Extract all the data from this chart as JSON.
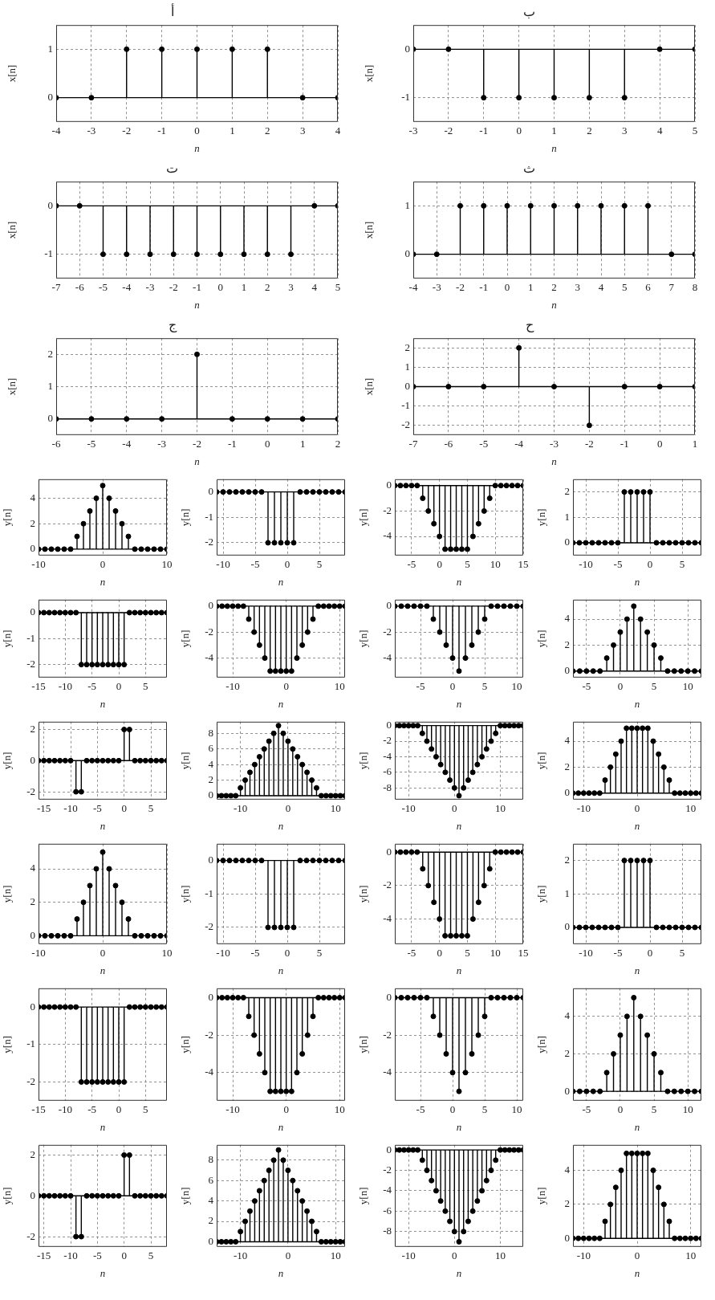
{
  "chart_data": [
    {
      "type": "lollipop",
      "title": "أ",
      "xlabel": "n",
      "ylabel": "x[n]",
      "color": "#000000",
      "marker": "circle",
      "grid": true,
      "xlim": [
        -4,
        4
      ],
      "xticks": [
        -4,
        -3,
        -2,
        -1,
        0,
        1,
        2,
        3,
        4
      ],
      "ylim": [
        -0.5,
        1.5
      ],
      "yticks": [
        0,
        1
      ],
      "x": [
        -4,
        -3,
        -2,
        -1,
        0,
        1,
        2,
        3,
        4
      ],
      "values": [
        0,
        0,
        1,
        1,
        1,
        1,
        1,
        0,
        0
      ]
    },
    {
      "type": "lollipop",
      "title": "ب",
      "xlabel": "n",
      "ylabel": "x[n]",
      "color": "#000000",
      "marker": "circle",
      "grid": true,
      "xlim": [
        -3,
        5
      ],
      "xticks": [
        -3,
        -2,
        -1,
        0,
        1,
        2,
        3,
        4,
        5
      ],
      "ylim": [
        -1.5,
        0.5
      ],
      "yticks": [
        -1,
        0
      ],
      "x": [
        -3,
        -2,
        -1,
        0,
        1,
        2,
        3,
        4,
        5
      ],
      "values": [
        0,
        0,
        -1,
        -1,
        -1,
        -1,
        -1,
        0,
        0
      ]
    },
    {
      "type": "lollipop",
      "title": "ت",
      "xlabel": "n",
      "ylabel": "x[n]",
      "color": "#000000",
      "marker": "circle",
      "grid": true,
      "xlim": [
        -7,
        5
      ],
      "xticks": [
        -7,
        -6,
        -5,
        -4,
        -3,
        -2,
        -1,
        0,
        1,
        2,
        3,
        4,
        5
      ],
      "ylim": [
        -1.5,
        0.5
      ],
      "yticks": [
        -1,
        0
      ],
      "x": [
        -7,
        -6,
        -5,
        -4,
        -3,
        -2,
        -1,
        0,
        1,
        2,
        3,
        4,
        5
      ],
      "values": [
        0,
        0,
        -1,
        -1,
        -1,
        -1,
        -1,
        -1,
        -1,
        -1,
        -1,
        0,
        0
      ]
    },
    {
      "type": "lollipop",
      "title": "ث",
      "xlabel": "n",
      "ylabel": "x[n]",
      "color": "#000000",
      "marker": "circle",
      "grid": true,
      "xlim": [
        -4,
        8
      ],
      "xticks": [
        -4,
        -3,
        -2,
        -1,
        0,
        1,
        2,
        3,
        4,
        5,
        6,
        7,
        8
      ],
      "ylim": [
        -0.5,
        1.5
      ],
      "yticks": [
        0,
        1
      ],
      "x": [
        -4,
        -3,
        -2,
        -1,
        0,
        1,
        2,
        3,
        4,
        5,
        6,
        7,
        8
      ],
      "values": [
        0,
        0,
        1,
        1,
        1,
        1,
        1,
        1,
        1,
        1,
        1,
        0,
        0
      ]
    },
    {
      "type": "lollipop",
      "title": "ج",
      "xlabel": "n",
      "ylabel": "x[n]",
      "color": "#000000",
      "marker": "circle",
      "grid": true,
      "xlim": [
        -6,
        2
      ],
      "xticks": [
        -6,
        -5,
        -4,
        -3,
        -2,
        -1,
        0,
        1,
        2
      ],
      "ylim": [
        -0.5,
        2.5
      ],
      "yticks": [
        0,
        1,
        2
      ],
      "x": [
        -6,
        -5,
        -4,
        -3,
        -2,
        -1,
        0,
        1,
        2
      ],
      "values": [
        0,
        0,
        0,
        0,
        2,
        0,
        0,
        0,
        0
      ]
    },
    {
      "type": "lollipop",
      "title": "ح",
      "xlabel": "n",
      "ylabel": "x[n]",
      "color": "#000000",
      "marker": "circle",
      "grid": true,
      "xlim": [
        -7,
        1
      ],
      "xticks": [
        -7,
        -6,
        -5,
        -4,
        -3,
        -2,
        -1,
        0,
        1
      ],
      "ylim": [
        -2.5,
        2.5
      ],
      "yticks": [
        -2,
        -1,
        0,
        1,
        2
      ],
      "x": [
        -7,
        -6,
        -5,
        -4,
        -3,
        -2,
        -1,
        0,
        1
      ],
      "values": [
        0,
        0,
        0,
        2,
        0,
        -2,
        0,
        0,
        0
      ]
    },
    {
      "type": "lollipop",
      "xlabel": "n",
      "ylabel": "y[n]",
      "color": "#000000",
      "marker": "circle",
      "grid": true,
      "xlim": [
        -10,
        10
      ],
      "xticks": [
        -10,
        0,
        10
      ],
      "ylim": [
        -0.5,
        5.5
      ],
      "yticks": [
        0,
        2,
        4
      ],
      "x": [
        -10,
        -9,
        -8,
        -7,
        -6,
        -5,
        -4,
        -3,
        -2,
        -1,
        0,
        1,
        2,
        3,
        4,
        5,
        6,
        7,
        8,
        9,
        10
      ],
      "values": [
        0,
        0,
        0,
        0,
        0,
        0,
        1,
        2,
        3,
        4,
        5,
        4,
        3,
        2,
        1,
        0,
        0,
        0,
        0,
        0,
        0
      ]
    },
    {
      "type": "lollipop",
      "xlabel": "n",
      "ylabel": "y[n]",
      "color": "#000000",
      "marker": "circle",
      "grid": true,
      "xlim": [
        -11,
        9
      ],
      "xticks": [
        -10,
        -5,
        0,
        5
      ],
      "ylim": [
        -2.5,
        0.5
      ],
      "yticks": [
        -2,
        -1,
        0
      ],
      "x": [
        -11,
        -10,
        -9,
        -8,
        -7,
        -6,
        -5,
        -4,
        -3,
        -2,
        -1,
        0,
        1,
        2,
        3,
        4,
        5,
        6,
        7,
        8,
        9
      ],
      "values": [
        0,
        0,
        0,
        0,
        0,
        0,
        0,
        0,
        -2,
        -2,
        -2,
        -2,
        -2,
        0,
        0,
        0,
        0,
        0,
        0,
        0,
        0
      ]
    },
    {
      "type": "lollipop",
      "xlabel": "n",
      "ylabel": "y[n]",
      "color": "#000000",
      "marker": "circle",
      "grid": true,
      "xlim": [
        -8,
        15
      ],
      "xticks": [
        -5,
        0,
        5,
        10,
        15
      ],
      "ylim": [
        -5.5,
        0.5
      ],
      "yticks": [
        -4,
        -2,
        0
      ],
      "x": [
        -8,
        -7,
        -6,
        -5,
        -4,
        -3,
        -2,
        -1,
        0,
        1,
        2,
        3,
        4,
        5,
        6,
        7,
        8,
        9,
        10,
        11,
        12,
        13,
        14,
        15
      ],
      "values": [
        0,
        0,
        0,
        0,
        0,
        -1,
        -2,
        -3,
        -4,
        -5,
        -5,
        -5,
        -5,
        -5,
        -4,
        -3,
        -2,
        -1,
        0,
        0,
        0,
        0,
        0,
        0
      ]
    },
    {
      "type": "lollipop",
      "xlabel": "n",
      "ylabel": "y[n]",
      "color": "#000000",
      "marker": "circle",
      "grid": true,
      "xlim": [
        -12,
        8
      ],
      "xticks": [
        -10,
        -5,
        0,
        5
      ],
      "ylim": [
        -0.5,
        2.5
      ],
      "yticks": [
        0,
        1,
        2
      ],
      "x": [
        -12,
        -11,
        -10,
        -9,
        -8,
        -7,
        -6,
        -5,
        -4,
        -3,
        -2,
        -1,
        0,
        1,
        2,
        3,
        4,
        5,
        6,
        7,
        8
      ],
      "values": [
        0,
        0,
        0,
        0,
        0,
        0,
        0,
        0,
        2,
        2,
        2,
        2,
        2,
        0,
        0,
        0,
        0,
        0,
        0,
        0,
        0
      ]
    },
    {
      "type": "lollipop",
      "xlabel": "n",
      "ylabel": "y[n]",
      "color": "#000000",
      "marker": "circle",
      "grid": true,
      "xlim": [
        -15,
        9
      ],
      "xticks": [
        -15,
        -10,
        -5,
        0,
        5
      ],
      "ylim": [
        -2.5,
        0.5
      ],
      "yticks": [
        -2,
        -1,
        0
      ],
      "x": [
        -15,
        -14,
        -13,
        -12,
        -11,
        -10,
        -9,
        -8,
        -7,
        -6,
        -5,
        -4,
        -3,
        -2,
        -1,
        0,
        1,
        2,
        3,
        4,
        5,
        6,
        7,
        8,
        9
      ],
      "values": [
        0,
        0,
        0,
        0,
        0,
        0,
        0,
        0,
        -2,
        -2,
        -2,
        -2,
        -2,
        -2,
        -2,
        -2,
        -2,
        0,
        0,
        0,
        0,
        0,
        0,
        0,
        0
      ]
    },
    {
      "type": "lollipop",
      "xlabel": "n",
      "ylabel": "y[n]",
      "color": "#000000",
      "marker": "circle",
      "grid": true,
      "xlim": [
        -13,
        11
      ],
      "xticks": [
        -10,
        0,
        10
      ],
      "ylim": [
        -5.5,
        0.5
      ],
      "yticks": [
        -4,
        -2,
        0
      ],
      "x": [
        -13,
        -12,
        -11,
        -10,
        -9,
        -8,
        -7,
        -6,
        -5,
        -4,
        -3,
        -2,
        -1,
        0,
        1,
        2,
        3,
        4,
        5,
        6,
        7,
        8,
        9,
        10,
        11
      ],
      "values": [
        0,
        0,
        0,
        0,
        0,
        0,
        -1,
        -2,
        -3,
        -4,
        -5,
        -5,
        -5,
        -5,
        -5,
        -4,
        -3,
        -2,
        -1,
        0,
        0,
        0,
        0,
        0,
        0
      ]
    },
    {
      "type": "lollipop",
      "xlabel": "n",
      "ylabel": "y[n]",
      "color": "#000000",
      "marker": "circle",
      "grid": true,
      "xlim": [
        -9,
        11
      ],
      "xticks": [
        -5,
        0,
        5,
        10
      ],
      "ylim": [
        -5.5,
        0.5
      ],
      "yticks": [
        -4,
        -2,
        0
      ],
      "x": [
        -9,
        -8,
        -7,
        -6,
        -5,
        -4,
        -3,
        -2,
        -1,
        0,
        1,
        2,
        3,
        4,
        5,
        6,
        7,
        8,
        9,
        10,
        11
      ],
      "values": [
        0,
        0,
        0,
        0,
        0,
        0,
        -1,
        -2,
        -3,
        -4,
        -5,
        -4,
        -3,
        -2,
        -1,
        0,
        0,
        0,
        0,
        0,
        0
      ]
    },
    {
      "type": "lollipop",
      "xlabel": "n",
      "ylabel": "y[n]",
      "color": "#000000",
      "marker": "circle",
      "grid": true,
      "xlim": [
        -7,
        12
      ],
      "xticks": [
        -5,
        0,
        5,
        10
      ],
      "ylim": [
        -0.5,
        5.5
      ],
      "yticks": [
        0,
        2,
        4
      ],
      "x": [
        -7,
        -6,
        -5,
        -4,
        -3,
        -2,
        -1,
        0,
        1,
        2,
        3,
        4,
        5,
        6,
        7,
        8,
        9,
        10,
        11,
        12
      ],
      "values": [
        0,
        0,
        0,
        0,
        0,
        1,
        2,
        3,
        4,
        5,
        4,
        3,
        2,
        1,
        0,
        0,
        0,
        0,
        0,
        0
      ]
    },
    {
      "type": "lollipop",
      "xlabel": "n",
      "ylabel": "y[n]",
      "color": "#000000",
      "marker": "circle",
      "grid": true,
      "xlim": [
        -16,
        8
      ],
      "xticks": [
        -15,
        -10,
        -5,
        0,
        5
      ],
      "ylim": [
        -2.5,
        2.5
      ],
      "yticks": [
        -2,
        0,
        2
      ],
      "x": [
        -16,
        -15,
        -14,
        -13,
        -12,
        -11,
        -10,
        -9,
        -8,
        -7,
        -6,
        -5,
        -4,
        -3,
        -2,
        -1,
        0,
        1,
        2,
        3,
        4,
        5,
        6,
        7,
        8
      ],
      "values": [
        0,
        0,
        0,
        0,
        0,
        0,
        0,
        -2,
        -2,
        0,
        0,
        0,
        0,
        0,
        0,
        0,
        2,
        2,
        0,
        0,
        0,
        0,
        0,
        0,
        0
      ]
    },
    {
      "type": "lollipop",
      "xlabel": "n",
      "ylabel": "y[n]",
      "color": "#000000",
      "marker": "circle",
      "grid": true,
      "xlim": [
        -15,
        12
      ],
      "xticks": [
        -10,
        0,
        10
      ],
      "ylim": [
        -0.5,
        9.5
      ],
      "yticks": [
        0,
        2,
        4,
        6,
        8
      ],
      "x": [
        -15,
        -14,
        -13,
        -12,
        -11,
        -10,
        -9,
        -8,
        -7,
        -6,
        -5,
        -4,
        -3,
        -2,
        -1,
        0,
        1,
        2,
        3,
        4,
        5,
        6,
        7,
        8,
        9,
        10,
        11,
        12
      ],
      "values": [
        0,
        0,
        0,
        0,
        0,
        1,
        2,
        3,
        4,
        5,
        6,
        7,
        8,
        9,
        8,
        7,
        6,
        5,
        4,
        3,
        2,
        1,
        0,
        0,
        0,
        0,
        0,
        0
      ]
    },
    {
      "type": "lollipop",
      "xlabel": "n",
      "ylabel": "y[n]",
      "color": "#000000",
      "marker": "circle",
      "grid": true,
      "xlim": [
        -13,
        15
      ],
      "xticks": [
        -10,
        0,
        10
      ],
      "ylim": [
        -9.5,
        0.5
      ],
      "yticks": [
        -8,
        -6,
        -4,
        -2,
        0
      ],
      "x": [
        -13,
        -12,
        -11,
        -10,
        -9,
        -8,
        -7,
        -6,
        -5,
        -4,
        -3,
        -2,
        -1,
        0,
        1,
        2,
        3,
        4,
        5,
        6,
        7,
        8,
        9,
        10,
        11,
        12,
        13,
        14,
        15
      ],
      "values": [
        0,
        0,
        0,
        0,
        0,
        0,
        -1,
        -2,
        -3,
        -4,
        -5,
        -6,
        -7,
        -8,
        -9,
        -8,
        -7,
        -6,
        -5,
        -4,
        -3,
        -2,
        -1,
        0,
        0,
        0,
        0,
        0,
        0
      ]
    },
    {
      "type": "lollipop",
      "xlabel": "n",
      "ylabel": "y[n]",
      "color": "#000000",
      "marker": "circle",
      "grid": true,
      "xlim": [
        -12,
        12
      ],
      "xticks": [
        -10,
        0,
        10
      ],
      "ylim": [
        -0.5,
        5.5
      ],
      "yticks": [
        0,
        2,
        4
      ],
      "x": [
        -12,
        -11,
        -10,
        -9,
        -8,
        -7,
        -6,
        -5,
        -4,
        -3,
        -2,
        -1,
        0,
        1,
        2,
        3,
        4,
        5,
        6,
        7,
        8,
        9,
        10,
        11,
        12
      ],
      "values": [
        0,
        0,
        0,
        0,
        0,
        0,
        1,
        2,
        3,
        4,
        5,
        5,
        5,
        5,
        5,
        4,
        3,
        2,
        1,
        0,
        0,
        0,
        0,
        0,
        0
      ]
    },
    {
      "type": "lollipop",
      "xlabel": "n",
      "ylabel": "y[n]",
      "color": "#000000",
      "marker": "circle",
      "grid": true,
      "xlim": [
        -10,
        10
      ],
      "xticks": [
        -10,
        0,
        10
      ],
      "ylim": [
        -0.5,
        5.5
      ],
      "yticks": [
        0,
        2,
        4
      ],
      "x": [
        -10,
        -9,
        -8,
        -7,
        -6,
        -5,
        -4,
        -3,
        -2,
        -1,
        0,
        1,
        2,
        3,
        4,
        5,
        6,
        7,
        8,
        9,
        10
      ],
      "values": [
        0,
        0,
        0,
        0,
        0,
        0,
        1,
        2,
        3,
        4,
        5,
        4,
        3,
        2,
        1,
        0,
        0,
        0,
        0,
        0,
        0
      ]
    },
    {
      "type": "lollipop",
      "xlabel": "n",
      "ylabel": "y[n]",
      "color": "#000000",
      "marker": "circle",
      "grid": true,
      "xlim": [
        -11,
        9
      ],
      "xticks": [
        -10,
        -5,
        0,
        5
      ],
      "ylim": [
        -2.5,
        0.5
      ],
      "yticks": [
        -2,
        -1,
        0
      ],
      "x": [
        -11,
        -10,
        -9,
        -8,
        -7,
        -6,
        -5,
        -4,
        -3,
        -2,
        -1,
        0,
        1,
        2,
        3,
        4,
        5,
        6,
        7,
        8,
        9
      ],
      "values": [
        0,
        0,
        0,
        0,
        0,
        0,
        0,
        0,
        -2,
        -2,
        -2,
        -2,
        -2,
        0,
        0,
        0,
        0,
        0,
        0,
        0,
        0
      ]
    },
    {
      "type": "lollipop",
      "xlabel": "n",
      "ylabel": "y[n]",
      "color": "#000000",
      "marker": "circle",
      "grid": true,
      "xlim": [
        -8,
        15
      ],
      "xticks": [
        -5,
        0,
        5,
        10,
        15
      ],
      "ylim": [
        -5.5,
        0.5
      ],
      "yticks": [
        -4,
        -2,
        0
      ],
      "x": [
        -8,
        -7,
        -6,
        -5,
        -4,
        -3,
        -2,
        -1,
        0,
        1,
        2,
        3,
        4,
        5,
        6,
        7,
        8,
        9,
        10,
        11,
        12,
        13,
        14,
        15
      ],
      "values": [
        0,
        0,
        0,
        0,
        0,
        -1,
        -2,
        -3,
        -4,
        -5,
        -5,
        -5,
        -5,
        -5,
        -4,
        -3,
        -2,
        -1,
        0,
        0,
        0,
        0,
        0,
        0
      ]
    },
    {
      "type": "lollipop",
      "xlabel": "n",
      "ylabel": "y[n]",
      "color": "#000000",
      "marker": "circle",
      "grid": true,
      "xlim": [
        -12,
        8
      ],
      "xticks": [
        -10,
        -5,
        0,
        5
      ],
      "ylim": [
        -0.5,
        2.5
      ],
      "yticks": [
        0,
        1,
        2
      ],
      "x": [
        -12,
        -11,
        -10,
        -9,
        -8,
        -7,
        -6,
        -5,
        -4,
        -3,
        -2,
        -1,
        0,
        1,
        2,
        3,
        4,
        5,
        6,
        7,
        8
      ],
      "values": [
        0,
        0,
        0,
        0,
        0,
        0,
        0,
        0,
        2,
        2,
        2,
        2,
        2,
        0,
        0,
        0,
        0,
        0,
        0,
        0,
        0
      ]
    },
    {
      "type": "lollipop",
      "xlabel": "n",
      "ylabel": "y[n]",
      "color": "#000000",
      "marker": "circle",
      "grid": true,
      "xlim": [
        -15,
        9
      ],
      "xticks": [
        -15,
        -10,
        -5,
        0,
        5
      ],
      "ylim": [
        -2.5,
        0.5
      ],
      "yticks": [
        -2,
        -1,
        0
      ],
      "x": [
        -15,
        -14,
        -13,
        -12,
        -11,
        -10,
        -9,
        -8,
        -7,
        -6,
        -5,
        -4,
        -3,
        -2,
        -1,
        0,
        1,
        2,
        3,
        4,
        5,
        6,
        7,
        8,
        9
      ],
      "values": [
        0,
        0,
        0,
        0,
        0,
        0,
        0,
        0,
        -2,
        -2,
        -2,
        -2,
        -2,
        -2,
        -2,
        -2,
        -2,
        0,
        0,
        0,
        0,
        0,
        0,
        0,
        0
      ]
    },
    {
      "type": "lollipop",
      "xlabel": "n",
      "ylabel": "y[n]",
      "color": "#000000",
      "marker": "circle",
      "grid": true,
      "xlim": [
        -13,
        11
      ],
      "xticks": [
        -10,
        0,
        10
      ],
      "ylim": [
        -5.5,
        0.5
      ],
      "yticks": [
        -4,
        -2,
        0
      ],
      "x": [
        -13,
        -12,
        -11,
        -10,
        -9,
        -8,
        -7,
        -6,
        -5,
        -4,
        -3,
        -2,
        -1,
        0,
        1,
        2,
        3,
        4,
        5,
        6,
        7,
        8,
        9,
        10,
        11
      ],
      "values": [
        0,
        0,
        0,
        0,
        0,
        0,
        -1,
        -2,
        -3,
        -4,
        -5,
        -5,
        -5,
        -5,
        -5,
        -4,
        -3,
        -2,
        -1,
        0,
        0,
        0,
        0,
        0,
        0
      ]
    },
    {
      "type": "lollipop",
      "xlabel": "n",
      "ylabel": "y[n]",
      "color": "#000000",
      "marker": "circle",
      "grid": true,
      "xlim": [
        -9,
        11
      ],
      "xticks": [
        -5,
        0,
        5,
        10
      ],
      "ylim": [
        -5.5,
        0.5
      ],
      "yticks": [
        -4,
        -2,
        0
      ],
      "x": [
        -9,
        -8,
        -7,
        -6,
        -5,
        -4,
        -3,
        -2,
        -1,
        0,
        1,
        2,
        3,
        4,
        5,
        6,
        7,
        8,
        9,
        10,
        11
      ],
      "values": [
        0,
        0,
        0,
        0,
        0,
        0,
        -1,
        -2,
        -3,
        -4,
        -5,
        -4,
        -3,
        -2,
        -1,
        0,
        0,
        0,
        0,
        0,
        0
      ]
    },
    {
      "type": "lollipop",
      "xlabel": "n",
      "ylabel": "y[n]",
      "color": "#000000",
      "marker": "circle",
      "grid": true,
      "xlim": [
        -7,
        12
      ],
      "xticks": [
        -5,
        0,
        5,
        10
      ],
      "ylim": [
        -0.5,
        5.5
      ],
      "yticks": [
        0,
        2,
        4
      ],
      "x": [
        -7,
        -6,
        -5,
        -4,
        -3,
        -2,
        -1,
        0,
        1,
        2,
        3,
        4,
        5,
        6,
        7,
        8,
        9,
        10,
        11,
        12
      ],
      "values": [
        0,
        0,
        0,
        0,
        0,
        1,
        2,
        3,
        4,
        5,
        4,
        3,
        2,
        1,
        0,
        0,
        0,
        0,
        0,
        0
      ]
    },
    {
      "type": "lollipop",
      "xlabel": "n",
      "ylabel": "y[n]",
      "color": "#000000",
      "marker": "circle",
      "grid": true,
      "xlim": [
        -16,
        8
      ],
      "xticks": [
        -15,
        -10,
        -5,
        0,
        5
      ],
      "ylim": [
        -2.5,
        2.5
      ],
      "yticks": [
        -2,
        0,
        2
      ],
      "x": [
        -16,
        -15,
        -14,
        -13,
        -12,
        -11,
        -10,
        -9,
        -8,
        -7,
        -6,
        -5,
        -4,
        -3,
        -2,
        -1,
        0,
        1,
        2,
        3,
        4,
        5,
        6,
        7,
        8
      ],
      "values": [
        0,
        0,
        0,
        0,
        0,
        0,
        0,
        -2,
        -2,
        0,
        0,
        0,
        0,
        0,
        0,
        0,
        2,
        2,
        0,
        0,
        0,
        0,
        0,
        0,
        0
      ]
    },
    {
      "type": "lollipop",
      "xlabel": "n",
      "ylabel": "y[n]",
      "color": "#000000",
      "marker": "circle",
      "grid": true,
      "xlim": [
        -15,
        12
      ],
      "xticks": [
        -10,
        0,
        10
      ],
      "ylim": [
        -0.5,
        9.5
      ],
      "yticks": [
        0,
        2,
        4,
        6,
        8
      ],
      "x": [
        -15,
        -14,
        -13,
        -12,
        -11,
        -10,
        -9,
        -8,
        -7,
        -6,
        -5,
        -4,
        -3,
        -2,
        -1,
        0,
        1,
        2,
        3,
        4,
        5,
        6,
        7,
        8,
        9,
        10,
        11,
        12
      ],
      "values": [
        0,
        0,
        0,
        0,
        0,
        1,
        2,
        3,
        4,
        5,
        6,
        7,
        8,
        9,
        8,
        7,
        6,
        5,
        4,
        3,
        2,
        1,
        0,
        0,
        0,
        0,
        0,
        0
      ]
    },
    {
      "type": "lollipop",
      "xlabel": "n",
      "ylabel": "y[n]",
      "color": "#000000",
      "marker": "circle",
      "grid": true,
      "xlim": [
        -13,
        15
      ],
      "xticks": [
        -10,
        0,
        10
      ],
      "ylim": [
        -9.5,
        0.5
      ],
      "yticks": [
        -8,
        -6,
        -4,
        -2,
        0
      ],
      "x": [
        -13,
        -12,
        -11,
        -10,
        -9,
        -8,
        -7,
        -6,
        -5,
        -4,
        -3,
        -2,
        -1,
        0,
        1,
        2,
        3,
        4,
        5,
        6,
        7,
        8,
        9,
        10,
        11,
        12,
        13,
        14,
        15
      ],
      "values": [
        0,
        0,
        0,
        0,
        0,
        0,
        -1,
        -2,
        -3,
        -4,
        -5,
        -6,
        -7,
        -8,
        -9,
        -8,
        -7,
        -6,
        -5,
        -4,
        -3,
        -2,
        -1,
        0,
        0,
        0,
        0,
        0,
        0
      ]
    },
    {
      "type": "lollipop",
      "xlabel": "n",
      "ylabel": "y[n]",
      "color": "#000000",
      "marker": "circle",
      "grid": true,
      "xlim": [
        -12,
        12
      ],
      "xticks": [
        -10,
        0,
        10
      ],
      "ylim": [
        -0.5,
        5.5
      ],
      "yticks": [
        0,
        2,
        4
      ],
      "x": [
        -12,
        -11,
        -10,
        -9,
        -8,
        -7,
        -6,
        -5,
        -4,
        -3,
        -2,
        -1,
        0,
        1,
        2,
        3,
        4,
        5,
        6,
        7,
        8,
        9,
        10,
        11,
        12
      ],
      "values": [
        0,
        0,
        0,
        0,
        0,
        0,
        1,
        2,
        3,
        4,
        5,
        5,
        5,
        5,
        5,
        4,
        3,
        2,
        1,
        0,
        0,
        0,
        0,
        0,
        0
      ]
    }
  ]
}
